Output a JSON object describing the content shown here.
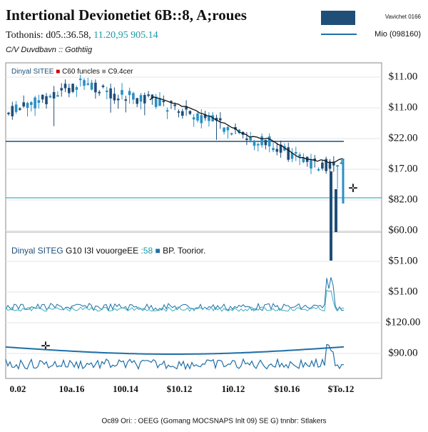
{
  "header": {
    "title": "Intertional Devionetiet 6B::8, A;roues",
    "quote_label": "Tothonis: d05.:36.58,",
    "quote_highlight": "11.20,95 905.14",
    "subtitle": "C/V Duvdbavn :: Gothtiig"
  },
  "legend": [
    "Vavichet 0166",
    "Mio (098160)"
  ],
  "panels": [
    {
      "label": "Dinyal SITEE",
      "items": [
        "C60 funcles",
        "C9.4cer"
      ]
    },
    {
      "label": "Dinyal SITEG",
      "text": "G10 I3I vouorgeEE",
      "items": [
        ":58",
        "BP. Toorior."
      ]
    }
  ],
  "axis": {
    "right_labels": [
      "$11.00",
      "$11.00",
      "$22.00",
      "$17.00",
      "$82.00",
      "$60.00",
      "$51.00",
      "$51.00",
      "$120.00",
      "$90.00"
    ],
    "bottom_labels": [
      "0.02",
      "10a.16",
      "100.14",
      "$10.12",
      "1i0.12",
      "$10.16",
      "$To.12"
    ]
  },
  "footer": "Oc89 Ori: : OEEG (Gomang MOCSNAPS Inlt 09) SE G) tnnbr: Stlakers"
}
